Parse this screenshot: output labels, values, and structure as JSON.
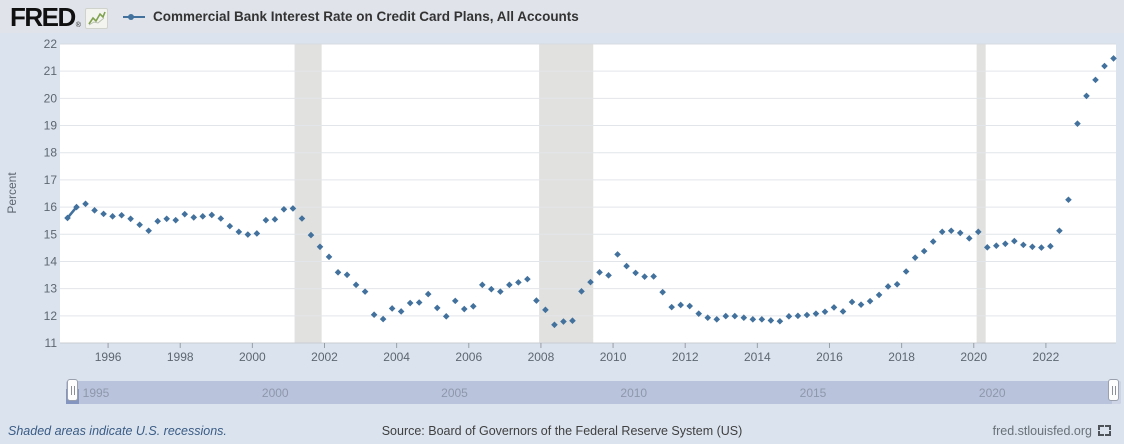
{
  "header": {
    "logo_text": "FRED",
    "logo_registered": "®",
    "series_title": "Commercial Bank Interest Rate on Credit Card Plans, All Accounts"
  },
  "chart_data": {
    "type": "scatter",
    "title": "Commercial Bank Interest Rate on Credit Card Plans, All Accounts",
    "xlabel": "",
    "ylabel": "Percent",
    "ylim": [
      11,
      22
    ],
    "yticks": [
      11,
      12,
      13,
      14,
      15,
      16,
      17,
      18,
      19,
      20,
      21,
      22
    ],
    "xticks": [
      1996,
      1998,
      2000,
      2002,
      2004,
      2006,
      2008,
      2010,
      2012,
      2014,
      2016,
      2018,
      2020,
      2022
    ],
    "grid": "horizontal",
    "legend_position": "top",
    "marker": "diamond",
    "series_color": "#41719c",
    "recession_band_color": "#e1e1e0",
    "recession_bands_years": [
      [
        2001.17,
        2001.92
      ],
      [
        2007.95,
        2009.45
      ],
      [
        2020.08,
        2020.33
      ]
    ],
    "frequency": "quarterly",
    "dates": [
      "1994-11",
      "1995-02",
      "1995-05",
      "1995-08",
      "1995-11",
      "1996-02",
      "1996-05",
      "1996-08",
      "1996-11",
      "1997-02",
      "1997-05",
      "1997-08",
      "1997-11",
      "1998-02",
      "1998-05",
      "1998-08",
      "1998-11",
      "1999-02",
      "1999-05",
      "1999-08",
      "1999-11",
      "2000-02",
      "2000-05",
      "2000-08",
      "2000-11",
      "2001-02",
      "2001-05",
      "2001-08",
      "2001-11",
      "2002-02",
      "2002-05",
      "2002-08",
      "2002-11",
      "2003-02",
      "2003-05",
      "2003-08",
      "2003-11",
      "2004-02",
      "2004-05",
      "2004-08",
      "2004-11",
      "2005-02",
      "2005-05",
      "2005-08",
      "2005-11",
      "2006-02",
      "2006-05",
      "2006-08",
      "2006-11",
      "2007-02",
      "2007-05",
      "2007-08",
      "2007-11",
      "2008-02",
      "2008-05",
      "2008-08",
      "2008-11",
      "2009-02",
      "2009-05",
      "2009-08",
      "2009-11",
      "2010-02",
      "2010-05",
      "2010-08",
      "2010-11",
      "2011-02",
      "2011-05",
      "2011-08",
      "2011-11",
      "2012-02",
      "2012-05",
      "2012-08",
      "2012-11",
      "2013-02",
      "2013-05",
      "2013-08",
      "2013-11",
      "2014-02",
      "2014-05",
      "2014-08",
      "2014-11",
      "2015-02",
      "2015-05",
      "2015-08",
      "2015-11",
      "2016-02",
      "2016-05",
      "2016-08",
      "2016-11",
      "2017-02",
      "2017-05",
      "2017-08",
      "2017-11",
      "2018-02",
      "2018-05",
      "2018-08",
      "2018-11",
      "2019-02",
      "2019-05",
      "2019-08",
      "2019-11",
      "2020-02",
      "2020-05",
      "2020-08",
      "2020-11",
      "2021-02",
      "2021-05",
      "2021-08",
      "2021-11",
      "2022-02",
      "2022-05",
      "2022-08",
      "2022-11",
      "2023-02",
      "2023-05",
      "2023-08",
      "2023-11"
    ],
    "values": [
      15.6,
      16.0,
      16.12,
      15.88,
      15.75,
      15.66,
      15.7,
      15.57,
      15.35,
      15.13,
      15.48,
      15.57,
      15.52,
      15.74,
      15.62,
      15.66,
      15.71,
      15.58,
      15.3,
      15.09,
      14.99,
      15.03,
      15.52,
      15.55,
      15.92,
      15.95,
      15.58,
      14.97,
      14.54,
      14.17,
      13.6,
      13.51,
      13.14,
      12.89,
      12.04,
      11.88,
      12.27,
      12.16,
      12.47,
      12.49,
      12.8,
      12.29,
      11.98,
      12.55,
      12.25,
      12.35,
      13.14,
      12.98,
      12.89,
      13.14,
      13.23,
      13.35,
      12.56,
      12.22,
      11.67,
      11.79,
      11.82,
      12.9,
      13.24,
      13.6,
      13.49,
      14.26,
      13.83,
      13.58,
      13.44,
      13.45,
      12.87,
      12.32,
      12.4,
      12.36,
      12.08,
      11.93,
      11.87,
      11.99,
      11.99,
      11.93,
      11.87,
      11.87,
      11.83,
      11.8,
      11.98,
      12.0,
      12.03,
      12.08,
      12.15,
      12.31,
      12.16,
      12.51,
      12.41,
      12.54,
      12.77,
      13.08,
      13.16,
      13.63,
      14.14,
      14.38,
      14.73,
      15.09,
      15.13,
      15.05,
      14.85,
      15.09,
      14.52,
      14.58,
      14.65,
      14.75,
      14.61,
      14.54,
      14.51,
      14.56,
      15.13,
      16.27,
      19.07,
      20.09,
      20.68,
      21.19,
      21.47
    ]
  },
  "slider": {
    "labels": [
      "1995",
      "2000",
      "2005",
      "2010",
      "2015",
      "2020"
    ],
    "label_years": [
      1995,
      2000,
      2005,
      2010,
      2015,
      2020
    ]
  },
  "footer": {
    "recession_note": "Shaded areas indicate U.S. recessions.",
    "source": "Source: Board of Governors of the Federal Reserve System (US)",
    "site": "fred.stlouisfed.org"
  }
}
